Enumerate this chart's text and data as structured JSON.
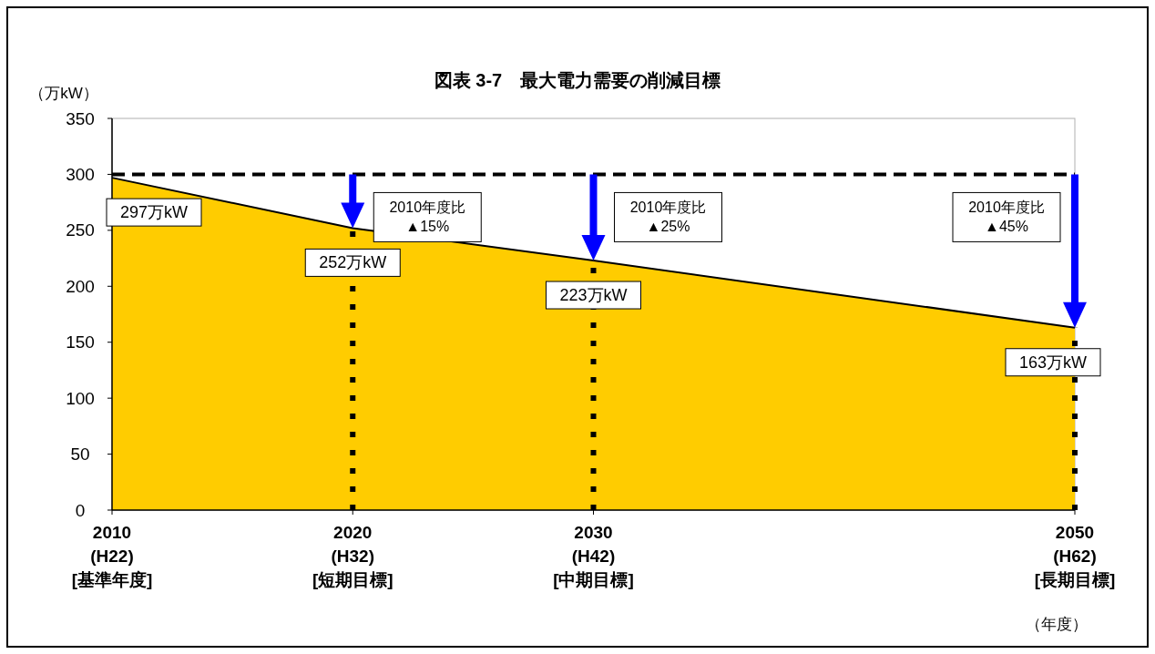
{
  "chart_data": {
    "type": "area",
    "title": "図表 3-7　最大電力需要の削減目標",
    "ylabel": "（万kW）",
    "xlabel": "（年度）",
    "categories": [
      "2010\n(H22)\n[基準年度]",
      "2020\n(H32)\n[短期目標]",
      "2030\n(H42)\n[中期目標]",
      null,
      "2050\n(H62)\n[長期目標]"
    ],
    "values": [
      297,
      252,
      223,
      193,
      163
    ],
    "color": "#ffcc00",
    "value_labels": [
      "297万kW",
      "252万kW",
      "223万kW",
      null,
      "163万kW"
    ],
    "ylim": [
      0,
      350
    ],
    "yticks": [
      0,
      50,
      100,
      150,
      200,
      250,
      300,
      350
    ],
    "ref_lines": [
      {
        "axis": "y",
        "value": 300,
        "line_style": "dashed",
        "color": "#000000"
      },
      {
        "axis": "x",
        "value": "2020\n(H32)\n[短期目標]",
        "line_style": "dotted",
        "color": "#000000"
      },
      {
        "axis": "x",
        "value": "2030\n(H42)\n[中期目標]",
        "line_style": "dotted",
        "color": "#000000"
      },
      {
        "axis": "x",
        "value": "2050\n(H62)\n[長期目標]",
        "line_style": "dotted",
        "color": "#000000"
      }
    ],
    "annotations": [
      "2010年度比\n▲15%",
      "2010年度比\n▲25%",
      "2010年度比\n▲45%"
    ]
  }
}
